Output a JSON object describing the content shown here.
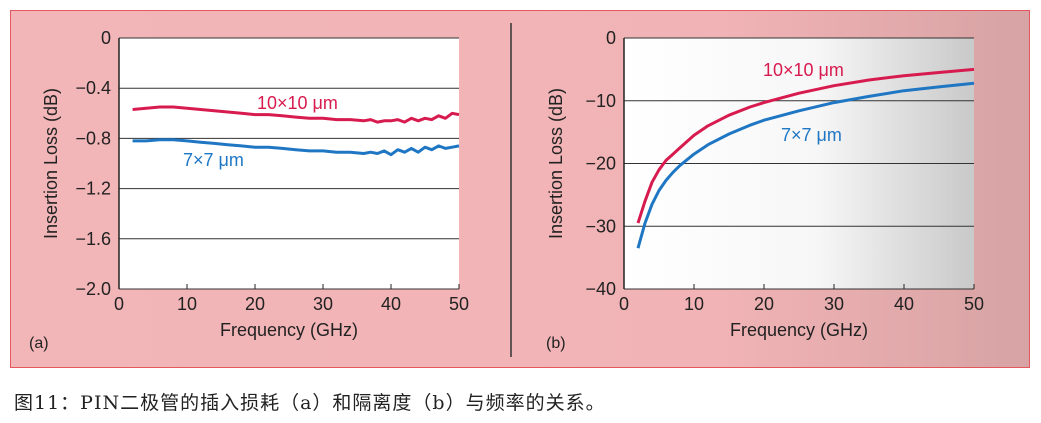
{
  "caption": "图11：PIN二极管的插入损耗（a）和隔离度（b）与频率的关系。",
  "colors": {
    "series_red": "#d81b4f",
    "series_blue": "#1f77c4",
    "panel_background": "#f3b6b8",
    "panel_border": "#e2585e",
    "grid": "#333333"
  },
  "chart_data": [
    {
      "id": "a",
      "type": "line",
      "panel_label": "(a)",
      "xlabel": "Frequency (GHz)",
      "ylabel": "Insertion Loss (dB)",
      "xlim": [
        0,
        50
      ],
      "ylim": [
        -2.0,
        0
      ],
      "xticks": [
        0,
        10,
        20,
        30,
        40,
        50
      ],
      "xtick_labels": [
        "0",
        "10",
        "20",
        "30",
        "40",
        "50"
      ],
      "yticks": [
        0,
        -0.4,
        -0.8,
        -1.2,
        -1.6,
        -2.0
      ],
      "ytick_labels": [
        "0",
        "−0.4",
        "−0.8",
        "−1.2",
        "−1.6",
        "−2.0"
      ],
      "grid": "horizontal",
      "series": [
        {
          "name": "10×10 μm",
          "color": "#d81b4f",
          "x": [
            2,
            4,
            6,
            8,
            10,
            12,
            14,
            16,
            18,
            20,
            22,
            24,
            26,
            28,
            30,
            32,
            34,
            36,
            37,
            38,
            39,
            40,
            41,
            42,
            43,
            44,
            45,
            46,
            47,
            48,
            49,
            50
          ],
          "y": [
            -0.57,
            -0.56,
            -0.55,
            -0.55,
            -0.56,
            -0.57,
            -0.58,
            -0.59,
            -0.6,
            -0.61,
            -0.61,
            -0.62,
            -0.63,
            -0.64,
            -0.64,
            -0.65,
            -0.65,
            -0.66,
            -0.65,
            -0.67,
            -0.66,
            -0.66,
            -0.65,
            -0.67,
            -0.64,
            -0.66,
            -0.64,
            -0.65,
            -0.62,
            -0.64,
            -0.6,
            -0.61
          ]
        },
        {
          "name": "7×7 μm",
          "color": "#1f77c4",
          "x": [
            2,
            4,
            6,
            8,
            10,
            12,
            14,
            16,
            18,
            20,
            22,
            24,
            26,
            28,
            30,
            32,
            34,
            36,
            37,
            38,
            39,
            40,
            41,
            42,
            43,
            44,
            45,
            46,
            47,
            48,
            49,
            50
          ],
          "y": [
            -0.82,
            -0.82,
            -0.81,
            -0.81,
            -0.82,
            -0.83,
            -0.84,
            -0.85,
            -0.86,
            -0.87,
            -0.87,
            -0.88,
            -0.89,
            -0.9,
            -0.9,
            -0.91,
            -0.91,
            -0.92,
            -0.91,
            -0.92,
            -0.9,
            -0.93,
            -0.89,
            -0.91,
            -0.88,
            -0.91,
            -0.87,
            -0.89,
            -0.86,
            -0.88,
            -0.87,
            -0.86
          ]
        }
      ]
    },
    {
      "id": "b",
      "type": "line",
      "panel_label": "(b)",
      "xlabel": "Frequency (GHz)",
      "ylabel": "Insertion Loss (dB)",
      "xlim": [
        0,
        50
      ],
      "ylim": [
        -40,
        0
      ],
      "xticks": [
        0,
        10,
        20,
        30,
        40,
        50
      ],
      "xtick_labels": [
        "0",
        "10",
        "20",
        "30",
        "40",
        "50"
      ],
      "yticks": [
        0,
        -10,
        -20,
        -30,
        -40
      ],
      "ytick_labels": [
        "0",
        "−10",
        "−20",
        "−30",
        "−40"
      ],
      "grid": "horizontal",
      "series": [
        {
          "name": "10×10 μm",
          "color": "#d81b4f",
          "x": [
            2,
            3,
            4,
            5,
            6,
            7,
            8,
            10,
            12,
            15,
            18,
            20,
            25,
            30,
            35,
            40,
            45,
            50
          ],
          "y": [
            -29.5,
            -26,
            -23,
            -21,
            -19.5,
            -18.5,
            -17.5,
            -15.5,
            -14,
            -12.3,
            -11,
            -10.3,
            -8.8,
            -7.6,
            -6.7,
            -6.0,
            -5.5,
            -5.0
          ]
        },
        {
          "name": "7×7 μm",
          "color": "#1f77c4",
          "x": [
            2,
            3,
            4,
            5,
            6,
            7,
            8,
            10,
            12,
            15,
            18,
            20,
            25,
            30,
            35,
            40,
            45,
            50
          ],
          "y": [
            -33.5,
            -29.5,
            -26.5,
            -24.3,
            -22.7,
            -21.4,
            -20.3,
            -18.5,
            -17,
            -15.3,
            -13.9,
            -13.1,
            -11.6,
            -10.3,
            -9.3,
            -8.4,
            -7.8,
            -7.2
          ]
        }
      ]
    }
  ]
}
